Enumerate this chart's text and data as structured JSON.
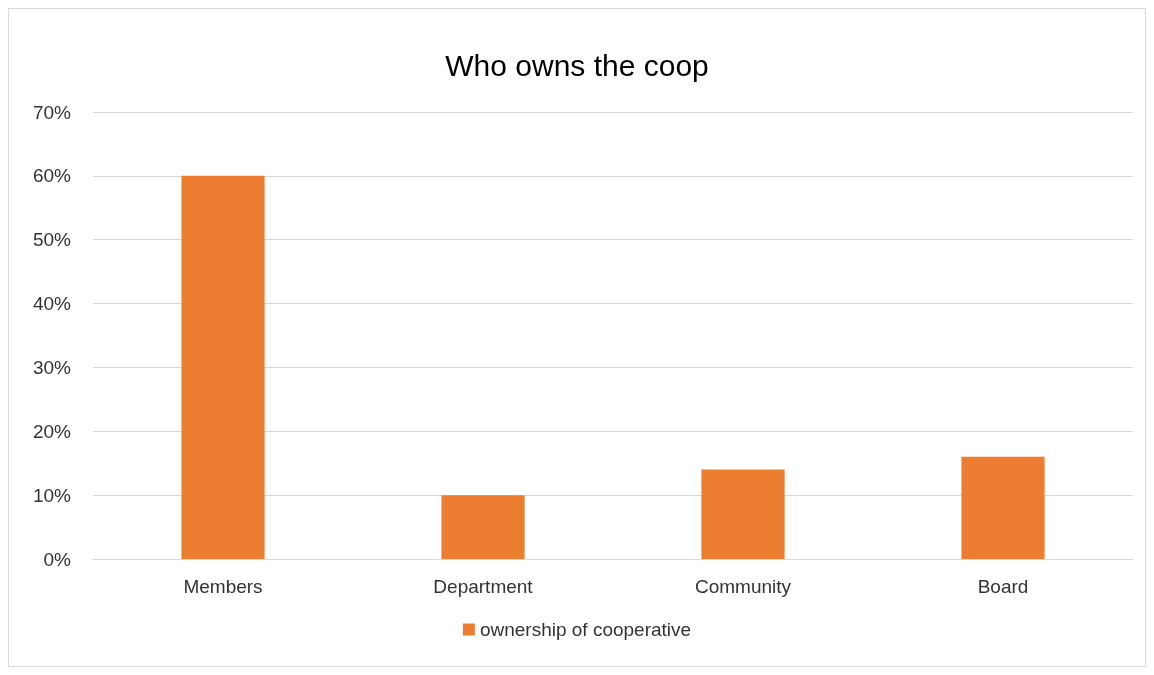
{
  "chart_data": {
    "type": "bar",
    "title": "Who owns the coop",
    "categories": [
      "Members",
      "Department",
      "Community",
      "Board"
    ],
    "series": [
      {
        "name": "ownership of cooperative",
        "color": "#ed7d31",
        "values": [
          60,
          10,
          14,
          16
        ]
      }
    ],
    "ylim": [
      0,
      70
    ],
    "yticks": [
      {
        "value": 0,
        "label": "0%"
      },
      {
        "value": 10,
        "label": "10%"
      },
      {
        "value": 20,
        "label": "20%"
      },
      {
        "value": 30,
        "label": "30%"
      },
      {
        "value": 40,
        "label": "40%"
      },
      {
        "value": 50,
        "label": "50%"
      },
      {
        "value": 60,
        "label": "60%"
      },
      {
        "value": 70,
        "label": "70%"
      }
    ],
    "grid": "y",
    "legend": "bottom"
  }
}
